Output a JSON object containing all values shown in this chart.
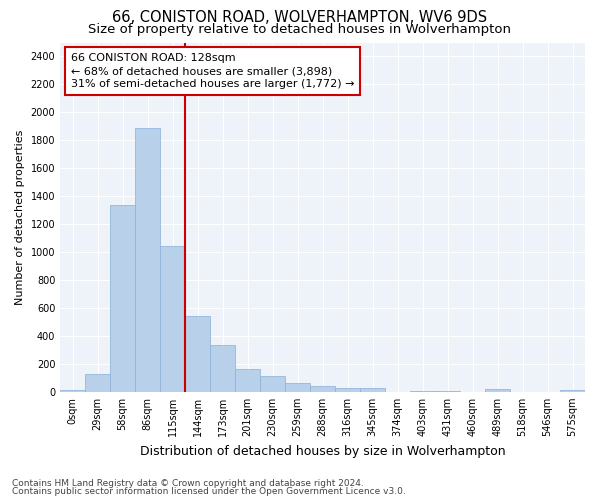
{
  "title1": "66, CONISTON ROAD, WOLVERHAMPTON, WV6 9DS",
  "title2": "Size of property relative to detached houses in Wolverhampton",
  "xlabel": "Distribution of detached houses by size in Wolverhampton",
  "ylabel": "Number of detached properties",
  "footer1": "Contains HM Land Registry data © Crown copyright and database right 2024.",
  "footer2": "Contains public sector information licensed under the Open Government Licence v3.0.",
  "bin_labels": [
    "0sqm",
    "29sqm",
    "58sqm",
    "86sqm",
    "115sqm",
    "144sqm",
    "173sqm",
    "201sqm",
    "230sqm",
    "259sqm",
    "288sqm",
    "316sqm",
    "345sqm",
    "374sqm",
    "403sqm",
    "431sqm",
    "460sqm",
    "489sqm",
    "518sqm",
    "546sqm",
    "575sqm"
  ],
  "bar_values": [
    15,
    125,
    1340,
    1890,
    1045,
    540,
    335,
    160,
    110,
    62,
    38,
    28,
    25,
    0,
    5,
    5,
    0,
    18,
    0,
    0,
    12
  ],
  "bar_color": "#b8d0ea",
  "bar_edge_color": "#8ab0d8",
  "vline_color": "#cc0000",
  "annotation_text": "66 CONISTON ROAD: 128sqm\n← 68% of detached houses are smaller (3,898)\n31% of semi-detached houses are larger (1,772) →",
  "annotation_box_color": "#cc0000",
  "ylim": [
    0,
    2500
  ],
  "yticks": [
    0,
    200,
    400,
    600,
    800,
    1000,
    1200,
    1400,
    1600,
    1800,
    2000,
    2200,
    2400
  ],
  "background_color": "#eef2f9",
  "grid_color": "#ffffff",
  "title1_fontsize": 10.5,
  "title2_fontsize": 9.5,
  "xlabel_fontsize": 9,
  "ylabel_fontsize": 8,
  "tick_fontsize": 7,
  "annotation_fontsize": 8,
  "footer_fontsize": 6.5
}
